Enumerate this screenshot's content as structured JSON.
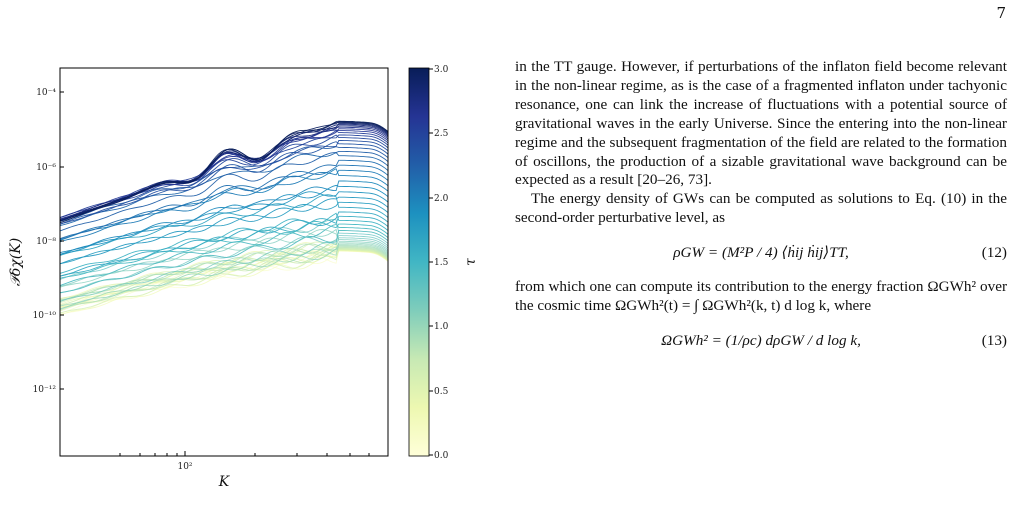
{
  "page": {
    "number": "7"
  },
  "figure": {
    "ylabel": "𝒫δχ(K)",
    "xlabel": "K",
    "colorbar_label": "τ",
    "y_ticks": [
      "10⁻⁴",
      "10⁻⁶",
      "10⁻⁸",
      "10⁻¹⁰",
      "10⁻¹²"
    ],
    "x_ticks": [
      "10²"
    ],
    "colorbar_ticks": [
      "3.0",
      "2.5",
      "2.0",
      "1.5",
      "1.0",
      "0.5",
      "0.0"
    ],
    "colormap": [
      "#ffffd9",
      "#edf8b1",
      "#c7e9b4",
      "#7fcdbb",
      "#41b6c4",
      "#1d91c0",
      "#225ea8",
      "#253494",
      "#081d58"
    ]
  },
  "chart_data": {
    "type": "line",
    "xlabel": "K",
    "ylabel": "𝒫δχ(K)",
    "xscale": "log",
    "yscale": "log",
    "xlim": [
      30,
      300
    ],
    "ylim": [
      1e-14,
      0.001
    ],
    "color_variable": "τ",
    "color_range": [
      0.0,
      3.0
    ],
    "series_count": 60,
    "series": [
      {
        "tau": 0.0,
        "peak_K": 220,
        "peak_value": 1e-08
      },
      {
        "tau": 0.5,
        "peak_K": 220,
        "peak_value": 2e-08
      },
      {
        "tau": 1.0,
        "peak_K": 220,
        "peak_value": 1e-07
      },
      {
        "tau": 1.5,
        "peak_K": 220,
        "peak_value": 1e-06
      },
      {
        "tau": 2.0,
        "peak_K": 200,
        "peak_value": 3e-05
      },
      {
        "tau": 2.5,
        "peak_K": 190,
        "peak_value": 4e-05
      },
      {
        "tau": 3.0,
        "peak_K": 180,
        "peak_value": 4e-05
      }
    ]
  },
  "text": {
    "p1": "in the TT gauge. However, if perturbations of the inflaton field become relevant in the non-linear regime, as is the case of a fragmented inflaton under tachyonic resonance, one can link the increase of fluctuations with a potential source of gravitational waves in the early Universe. Since the entering into the non-linear regime and the subsequent fragmentation of the field are related to the formation of oscillons, the production of a sizable gravitational wave background can be expected as a result [20–26, 73].",
    "p2": "The energy density of GWs can be computed as solutions to Eq. (10) in the second-order perturbative level, as",
    "eq12": "ρGW = (M²P / 4) ⟨ḣij ḣij⟩TT,",
    "eq12_num": "(12)",
    "p3": "from which one can compute its contribution to the energy fraction ΩGWh² over the cosmic time ΩGWh²(t) = ∫ ΩGWh²(k, t) d log k, where",
    "eq13": "ΩGWh² = (1/ρc) dρGW / d log k,",
    "eq13_num": "(13)"
  }
}
